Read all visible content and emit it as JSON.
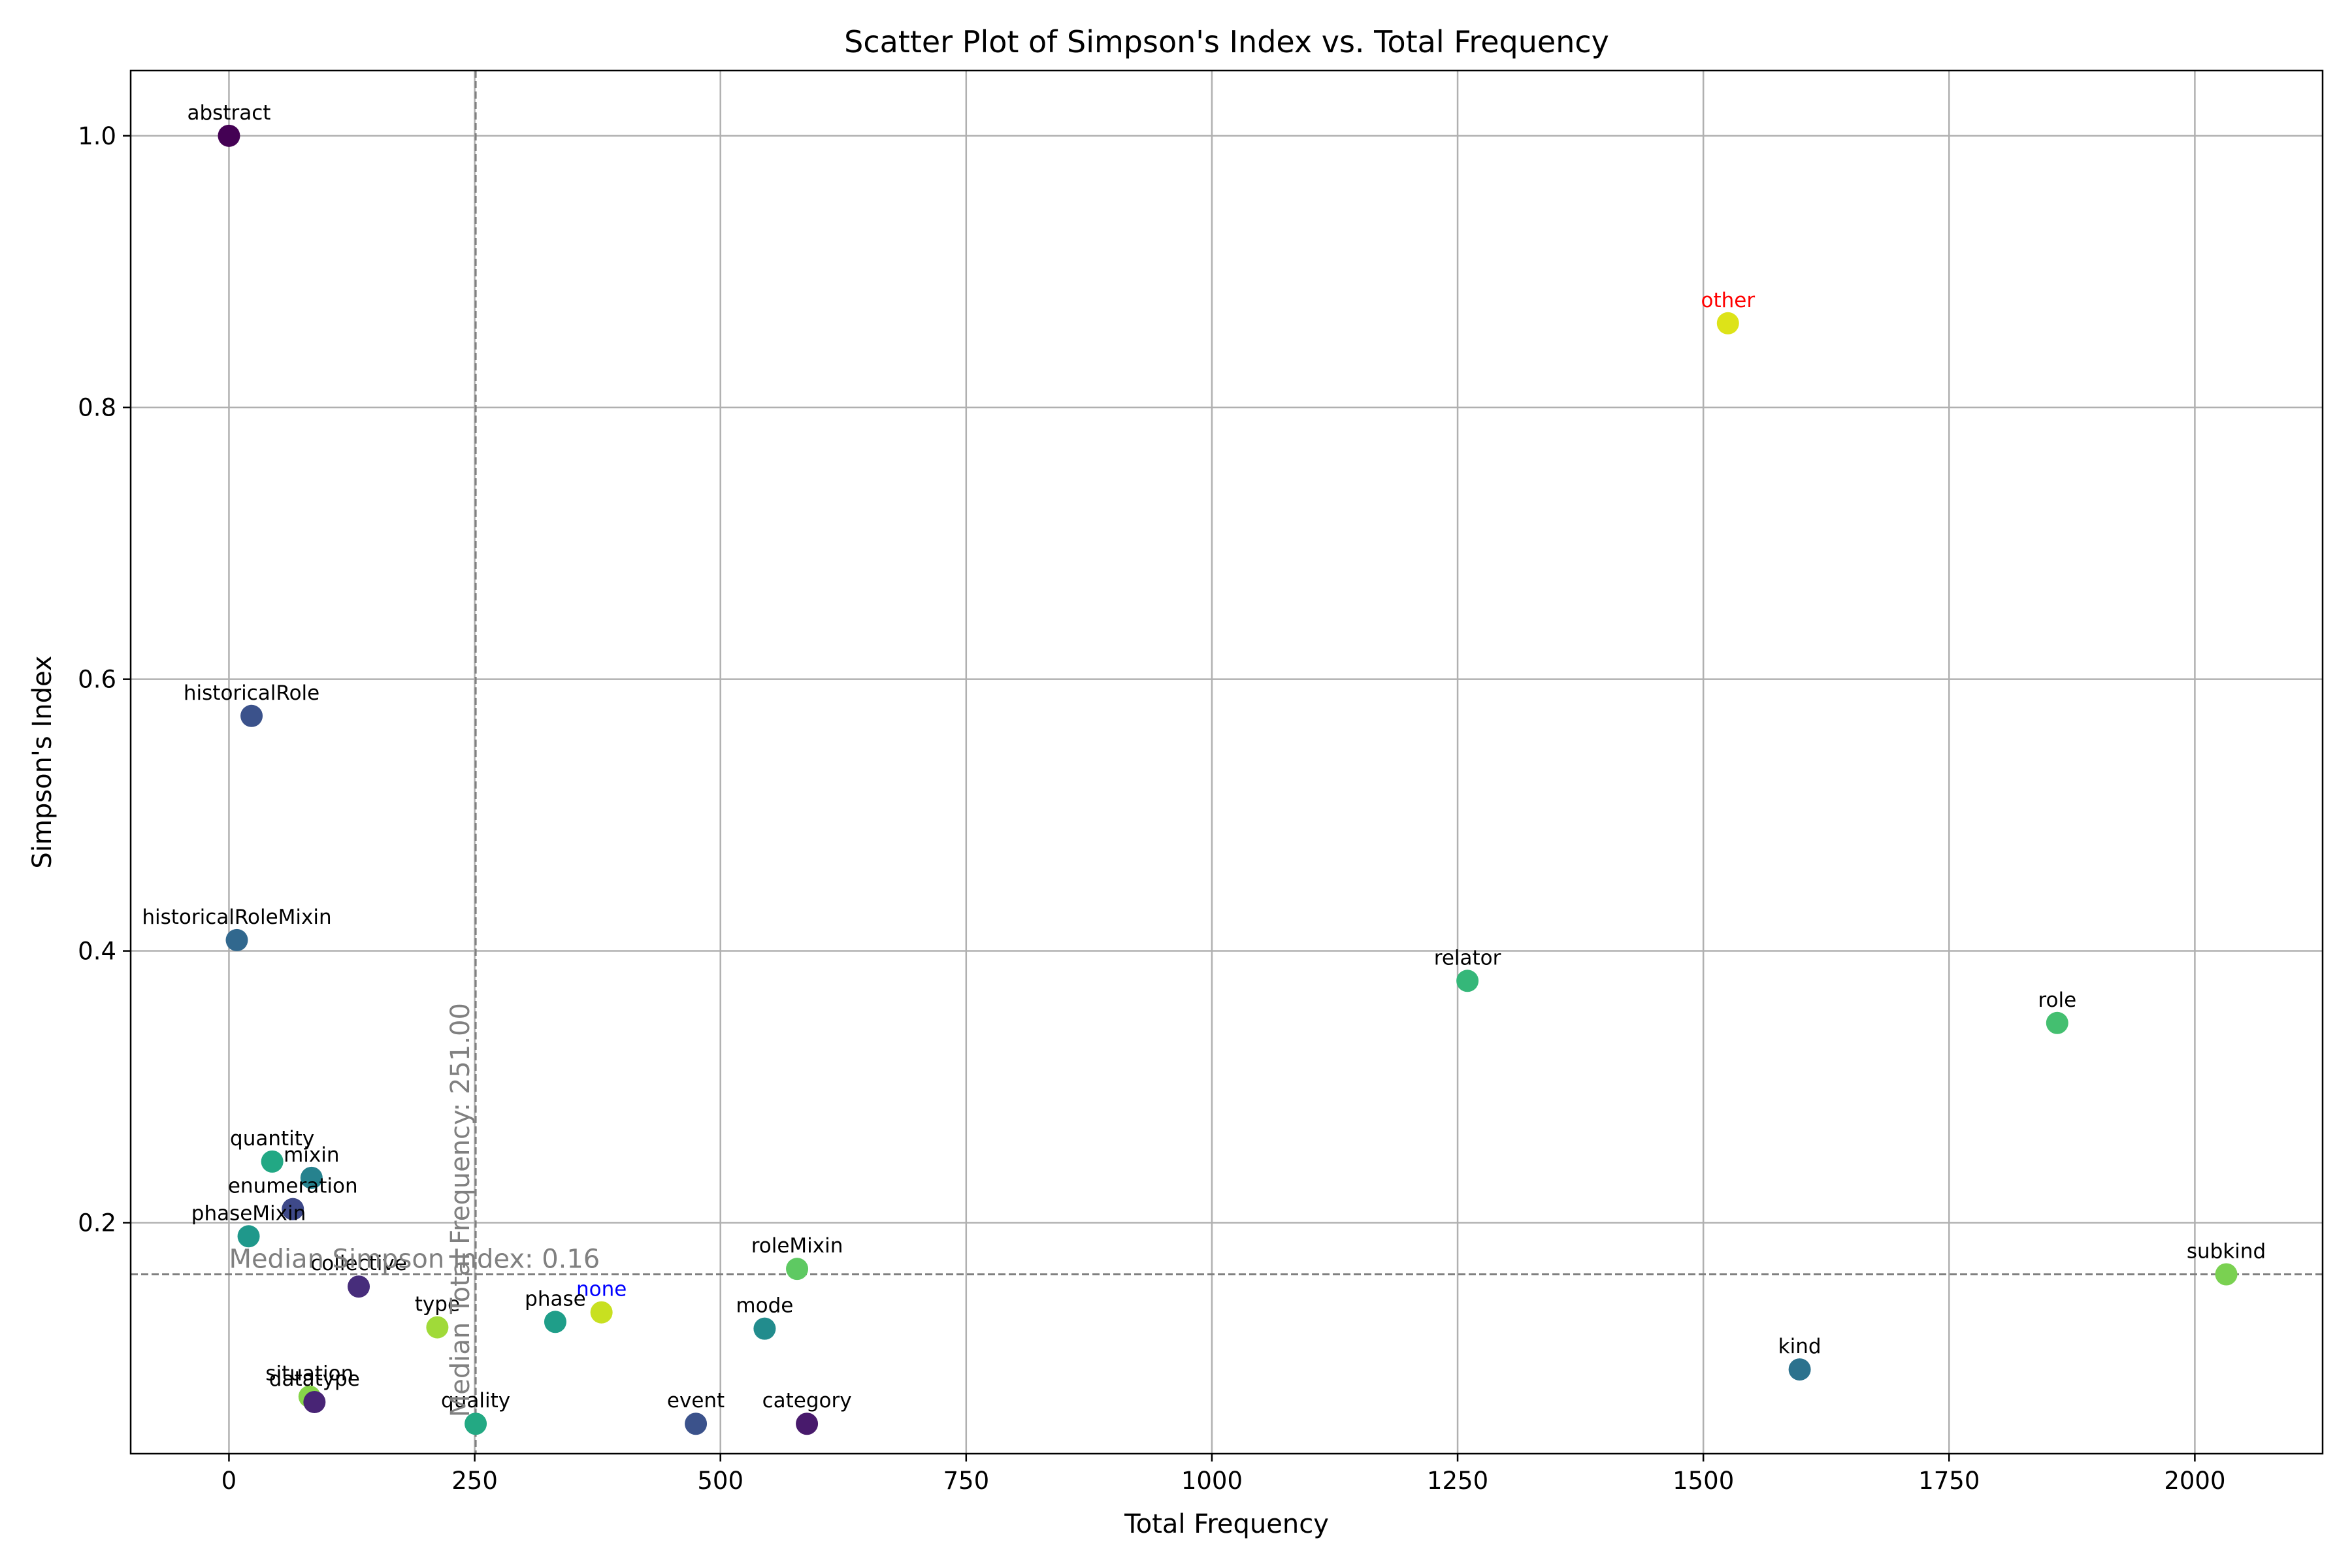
{
  "chart_data": {
    "type": "scatter",
    "title": "Scatter Plot of Simpson's Index vs. Total Frequency",
    "xlabel": "Total Frequency",
    "ylabel": "Simpson's Index",
    "xlim": [
      -100,
      2130
    ],
    "ylim": [
      0.03,
      1.048
    ],
    "x_ticks": [
      0,
      250,
      500,
      750,
      1000,
      1250,
      1500,
      1750,
      2000
    ],
    "y_ticks": [
      0.2,
      0.4,
      0.6,
      0.8,
      1.0
    ],
    "x_tick_labels": [
      "0",
      "250",
      "500",
      "750",
      "1000",
      "1250",
      "1500",
      "1750",
      "2000"
    ],
    "y_tick_labels": [
      "0.2",
      "0.4",
      "0.6",
      "0.8",
      "1.0"
    ],
    "grid": true,
    "reference_lines": {
      "vertical": {
        "x": 251,
        "label": "Median Total Frequency: 251.00",
        "color": "#808080"
      },
      "horizontal": {
        "y": 0.162,
        "label": "Median Simpson Index: 0.16",
        "color": "#808080"
      }
    },
    "points": [
      {
        "label": "abstract",
        "x": 0,
        "y": 1.0,
        "color": "#440154",
        "label_color": "#000000"
      },
      {
        "label": "other",
        "x": 1525,
        "y": 0.862,
        "color": "#dde318",
        "label_color": "#ff0000"
      },
      {
        "label": "historicalRole",
        "x": 23,
        "y": 0.573,
        "color": "#3b528b",
        "label_color": "#000000"
      },
      {
        "label": "historicalRoleMixin",
        "x": 8,
        "y": 0.408,
        "color": "#31688e",
        "label_color": "#000000"
      },
      {
        "label": "relator",
        "x": 1260,
        "y": 0.378,
        "color": "#35b779",
        "label_color": "#000000"
      },
      {
        "label": "role",
        "x": 1860,
        "y": 0.347,
        "color": "#44bf70",
        "label_color": "#000000"
      },
      {
        "label": "quantity",
        "x": 44,
        "y": 0.245,
        "color": "#22a884",
        "label_color": "#000000"
      },
      {
        "label": "mixin",
        "x": 84,
        "y": 0.233,
        "color": "#26828e",
        "label_color": "#000000"
      },
      {
        "label": "enumeration",
        "x": 65,
        "y": 0.21,
        "color": "#3e4989",
        "label_color": "#000000"
      },
      {
        "label": "phaseMixin",
        "x": 20,
        "y": 0.19,
        "color": "#1f988b",
        "label_color": "#000000"
      },
      {
        "label": "roleMixin",
        "x": 578,
        "y": 0.166,
        "color": "#5ec962",
        "label_color": "#000000"
      },
      {
        "label": "subkind",
        "x": 2032,
        "y": 0.162,
        "color": "#7ad151",
        "label_color": "#000000"
      },
      {
        "label": "collective",
        "x": 132,
        "y": 0.153,
        "color": "#472d7b",
        "label_color": "#000000"
      },
      {
        "label": "none",
        "x": 379,
        "y": 0.134,
        "color": "#c8e020",
        "label_color": "#0000ff"
      },
      {
        "label": "phase",
        "x": 332,
        "y": 0.127,
        "color": "#1f9e89",
        "label_color": "#000000"
      },
      {
        "label": "type",
        "x": 212,
        "y": 0.123,
        "color": "#a0da39",
        "label_color": "#000000"
      },
      {
        "label": "mode",
        "x": 545,
        "y": 0.122,
        "color": "#228c8d",
        "label_color": "#000000"
      },
      {
        "label": "kind",
        "x": 1598,
        "y": 0.092,
        "color": "#2c728e",
        "label_color": "#000000"
      },
      {
        "label": "situation",
        "x": 82,
        "y": 0.072,
        "color": "#86d549",
        "label_color": "#000000"
      },
      {
        "label": "datatype",
        "x": 87,
        "y": 0.068,
        "color": "#482475",
        "label_color": "#000000"
      },
      {
        "label": "quality",
        "x": 251,
        "y": 0.052,
        "color": "#23a983",
        "label_color": "#000000"
      },
      {
        "label": "event",
        "x": 475,
        "y": 0.052,
        "color": "#3b528b",
        "label_color": "#000000"
      },
      {
        "label": "category",
        "x": 588,
        "y": 0.052,
        "color": "#481a6c",
        "label_color": "#000000"
      }
    ]
  }
}
